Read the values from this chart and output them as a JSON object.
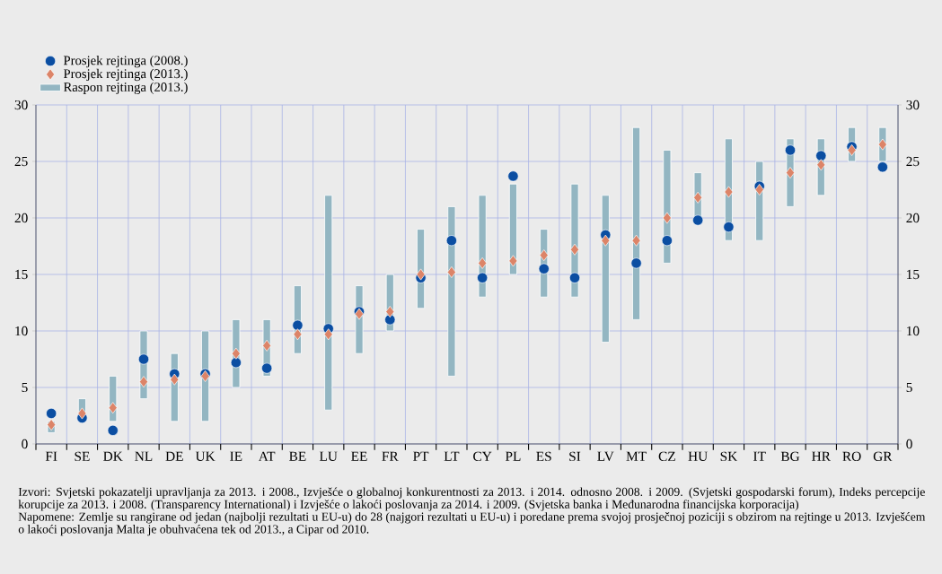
{
  "chart_data": {
    "type": "scatter",
    "categories": [
      "FI",
      "SE",
      "DK",
      "NL",
      "DE",
      "UK",
      "IE",
      "AT",
      "BE",
      "LU",
      "EE",
      "FR",
      "PT",
      "LT",
      "CY",
      "PL",
      "ES",
      "SI",
      "LV",
      "MT",
      "CZ",
      "HU",
      "SK",
      "IT",
      "BG",
      "HR",
      "RO",
      "GR"
    ],
    "series": [
      {
        "name": "Prosjek rejtinga (2008.)",
        "marker": "circle",
        "color": "#0b4ea2",
        "values": [
          2.7,
          2.3,
          1.2,
          7.5,
          6.2,
          6.2,
          7.2,
          6.7,
          10.5,
          10.2,
          11.7,
          11.0,
          14.7,
          18.0,
          14.7,
          23.7,
          15.5,
          14.7,
          18.5,
          16.0,
          18.0,
          19.8,
          19.2,
          22.8,
          26.0,
          25.5,
          26.3,
          24.5
        ]
      },
      {
        "name": "Prosjek rejtinga (2013.)",
        "marker": "diamond",
        "color": "#dc8468",
        "values": [
          1.7,
          2.7,
          3.2,
          5.5,
          5.7,
          6.0,
          8.0,
          8.7,
          9.7,
          9.7,
          11.5,
          11.7,
          15.0,
          15.2,
          16.0,
          16.2,
          16.7,
          17.2,
          18.0,
          18.0,
          20.0,
          21.8,
          22.3,
          22.5,
          24.0,
          24.7,
          26.0,
          26.5
        ]
      },
      {
        "name": "Raspon rejtinga (2013.)",
        "type": "bar",
        "color": "#93b6c2",
        "base": [
          1,
          2,
          2,
          4,
          2,
          2,
          5,
          6,
          8,
          3,
          8,
          10,
          12,
          6,
          13,
          15,
          13,
          13,
          9,
          11,
          16,
          20,
          18,
          18,
          21,
          22,
          25,
          25
        ],
        "values": [
          1,
          2,
          4,
          6,
          6,
          8,
          6,
          5,
          6,
          19,
          6,
          5,
          7,
          15,
          9,
          8,
          6,
          10,
          13,
          17,
          10,
          4,
          9,
          7,
          6,
          5,
          3,
          3
        ]
      }
    ],
    "ylim": [
      0,
      30
    ],
    "yticks": [
      0,
      5,
      10,
      15,
      20,
      25,
      30
    ],
    "y2lim": [
      0,
      30
    ],
    "y2ticks": [
      0,
      5,
      10,
      15,
      20,
      25,
      30
    ],
    "grid": true,
    "legend": "top left",
    "annotations": [
      "Izvori: Svjetski pokazatelji upravljanja za 2013. i 2008., Izvješće o globalnoj konkurentnosti za 2013. i 2014. odnosno 2008. i 2009. (Svjetski gospodarski forum), Indeks percepcije korupcije za 2013. i 2008. (Transparency International) i Izvješće o lakoći poslovanja za 2014. i 2009. (Svjetska banka i Međunarodna financijska korporacija)",
      "Napomene: Zemlje su rangirane od jedan (najbolji rezultati u EU-u) do 28 (najgori rezultati u EU-u) i poredane prema svojoj prosječnoj poziciji s obzirom na rejtinge u 2013. Izvješćem o lakoći poslovanja Malta je obuhvaćena tek od 2013., a Cipar od 2010."
    ]
  }
}
